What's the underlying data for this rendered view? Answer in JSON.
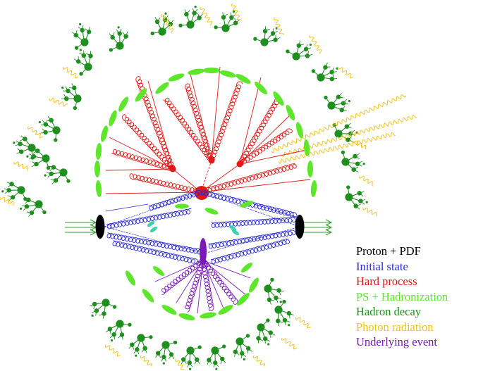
{
  "legend": {
    "items": [
      {
        "label": "Proton + PDF",
        "color": "#000000"
      },
      {
        "label": "Initial state",
        "color": "#2b2bd6"
      },
      {
        "label": "Hard process",
        "color": "#e01818"
      },
      {
        "label": "PS + Hadronization",
        "color": "#5ee62a"
      },
      {
        "label": "Hadron decay",
        "color": "#1f8f1f"
      },
      {
        "label": "Photon radiation",
        "color": "#f2c21a"
      },
      {
        "label": "Underlying event",
        "color": "#7a18b8"
      }
    ]
  },
  "colors": {
    "proton": "#000000",
    "initial_state": "#2b2bd6",
    "hard_process": "#e01818",
    "hadronization": "#5ee62a",
    "hadron_decay": "#1f8f1f",
    "photon": "#f2c21a",
    "underlying_event": "#7a18b8",
    "remnant": "#40d0b0"
  }
}
